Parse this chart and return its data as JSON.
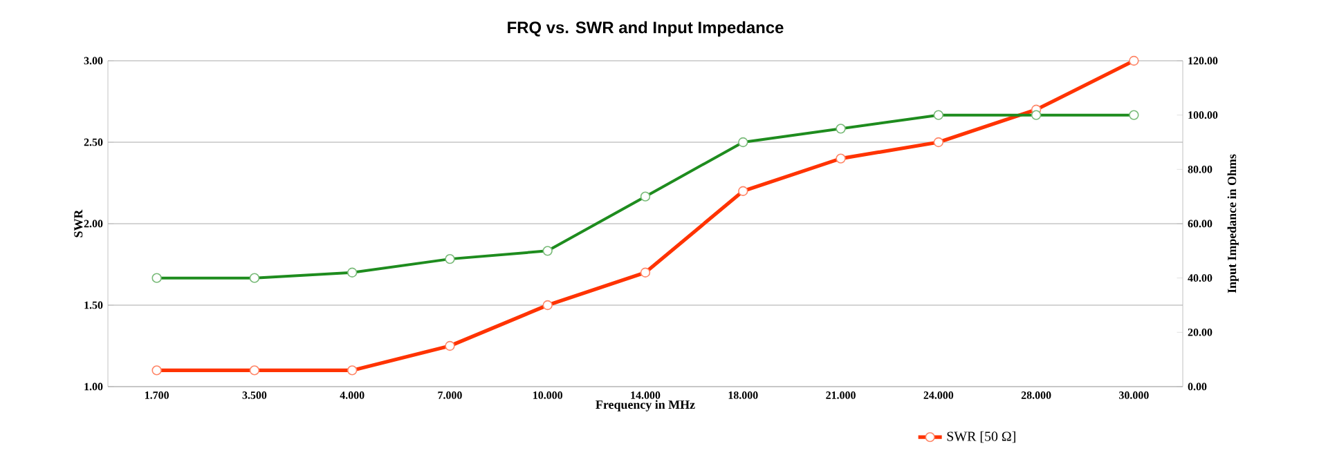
{
  "chart_data": {
    "type": "line",
    "title": "FRQ vs. SWR and Input Impedance",
    "xlabel": "Frequency in MHz",
    "ylabel": "SWR",
    "y2label": "Input Impedance in Ohms",
    "categories": [
      "1.700",
      "3.500",
      "4.000",
      "7.000",
      "10.000",
      "14.000",
      "18.000",
      "21.000",
      "24.000",
      "28.000",
      "30.000"
    ],
    "series": [
      {
        "name": "SWR [50 Ω]",
        "color": "#ff3300",
        "values": [
          1.1,
          1.1,
          1.1,
          1.25,
          1.5,
          1.7,
          2.2,
          2.4,
          2.5,
          2.7,
          3.0
        ]
      },
      {
        "color": "#1e8c1e",
        "axis": "y2",
        "values": [
          40,
          40,
          42,
          47,
          50,
          70,
          90,
          95,
          100,
          100,
          100
        ]
      }
    ],
    "ylim": [
      1,
      3
    ],
    "yticks": [
      {
        "value": 1,
        "label": "1.00"
      },
      {
        "value": 1.5,
        "label": "1.50"
      },
      {
        "value": 2,
        "label": "2.00"
      },
      {
        "value": 2.5,
        "label": "2.50"
      },
      {
        "value": 3,
        "label": "3.00"
      }
    ],
    "y2lim": [
      0,
      120
    ],
    "y2ticks": [
      {
        "value": 0,
        "label": "0.00"
      },
      {
        "value": 20,
        "label": "20.00"
      },
      {
        "value": 40,
        "label": "40.00"
      },
      {
        "value": 60,
        "label": "60.00"
      },
      {
        "value": 80,
        "label": "80.00"
      },
      {
        "value": 100,
        "label": "100.00"
      },
      {
        "value": 120,
        "label": "120.00"
      }
    ],
    "grid": "y",
    "legend": "bottom right",
    "marker": "circle",
    "line_style": "solid"
  }
}
